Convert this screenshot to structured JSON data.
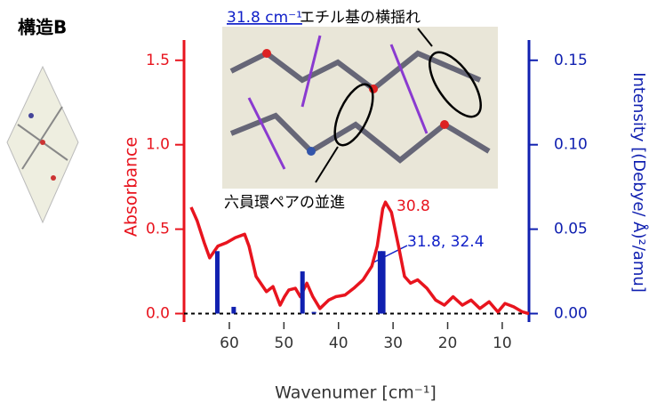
{
  "chart_data": {
    "type": "combo",
    "title": "構造B",
    "image_label": "31.8 cm⁻¹",
    "xlabel": "Wavenumer [cm⁻¹]",
    "ylabel": "Absorbance",
    "y2label": "Intensity [(Debye/ Å)²/amu]",
    "annotations": [
      {
        "text": "エチル基の横揺れ",
        "color": "#000000"
      },
      {
        "text": "六員環ペアの並進",
        "color": "#000000"
      },
      {
        "text": "30.8",
        "color": "#e8141e"
      },
      {
        "text": "31.8, 32.4",
        "color": "#1020c8"
      }
    ],
    "xlim": [
      68.3,
      5.1
    ],
    "xticks": [
      60,
      50,
      40,
      30,
      20,
      10
    ],
    "ylim": [
      -0.05,
      1.62
    ],
    "yticks": [
      {
        "value": 0,
        "label": "0.0"
      },
      0.5,
      {
        "value": 1,
        "label": "1.0"
      },
      1.5
    ],
    "y2lim": [
      -0.005,
      0.162
    ],
    "y2ticks": [
      {
        "value": 0,
        "label": "0.00"
      },
      0.05,
      {
        "value": 0.1,
        "label": "0.10"
      },
      0.15
    ],
    "series": [
      {
        "type": "line",
        "color": "#e8141e",
        "x": [
          67.0,
          65.9,
          64.6,
          63.6,
          62.1,
          60.5,
          58.9,
          57.2,
          56.4,
          55.1,
          53.2,
          52.0,
          50.7,
          49.9,
          49.1,
          47.9,
          47.0,
          45.8,
          44.7,
          43.4,
          41.8,
          40.5,
          38.8,
          37.2,
          35.5,
          33.9,
          32.9,
          31.9,
          31.4,
          30.3,
          29.0,
          27.9,
          26.8,
          25.5,
          23.8,
          22.2,
          20.6,
          19.0,
          17.3,
          15.7,
          14.1,
          12.4,
          10.8,
          9.5,
          7.9,
          6.3,
          5.1
        ],
        "values": [
          0.63,
          0.55,
          0.42,
          0.33,
          0.4,
          0.42,
          0.45,
          0.47,
          0.4,
          0.22,
          0.13,
          0.16,
          0.05,
          0.1,
          0.14,
          0.15,
          0.1,
          0.18,
          0.1,
          0.03,
          0.08,
          0.1,
          0.11,
          0.15,
          0.2,
          0.28,
          0.4,
          0.62,
          0.66,
          0.6,
          0.4,
          0.22,
          0.18,
          0.2,
          0.15,
          0.08,
          0.05,
          0.1,
          0.05,
          0.08,
          0.03,
          0.07,
          0.01,
          0.06,
          0.04,
          0.01,
          0.0
        ]
      },
      {
        "type": "bar",
        "axis": "y2",
        "color": "#1020b0",
        "x": [
          62.2,
          59.2,
          46.6,
          44.5,
          32.4,
          31.8
        ],
        "values": [
          0.037,
          0.004,
          0.025,
          0.001,
          0.037,
          0.037
        ]
      }
    ]
  }
}
